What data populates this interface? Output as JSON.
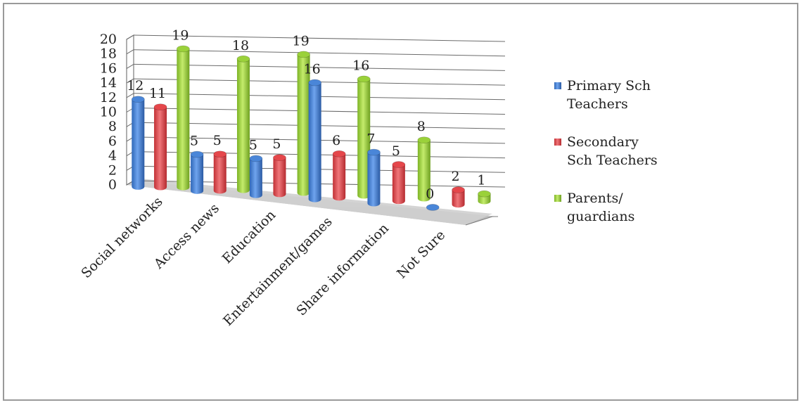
{
  "chart_data": {
    "type": "bar",
    "title": "",
    "xlabel": "",
    "ylabel": "",
    "ylim": [
      0,
      20
    ],
    "yticks": [
      "0",
      "2",
      "4",
      "6",
      "8",
      "10",
      "12",
      "14",
      "16",
      "18",
      "20"
    ],
    "grid": true,
    "legend": "right",
    "categories": [
      "Social networks",
      "Access news",
      "Education",
      "Entertainment/games",
      "Share information",
      "Not Sure"
    ],
    "series": [
      {
        "name": "Primary Sch Teachers",
        "name_lines": [
          "Primary Sch",
          "Teachers"
        ],
        "color": "#4a86d8",
        "values": [
          12,
          5,
          5,
          16,
          7,
          0
        ]
      },
      {
        "name": "Secondary Sch Teachers",
        "name_lines": [
          "Secondary",
          "Sch Teachers"
        ],
        "color": "#e5474b",
        "values": [
          11,
          5,
          5,
          6,
          5,
          2
        ]
      },
      {
        "name": "Parents/ guardians",
        "name_lines": [
          "Parents/",
          "guardians"
        ],
        "color": "#9ad13a",
        "values": [
          19,
          18,
          19,
          16,
          8,
          1
        ]
      }
    ]
  }
}
